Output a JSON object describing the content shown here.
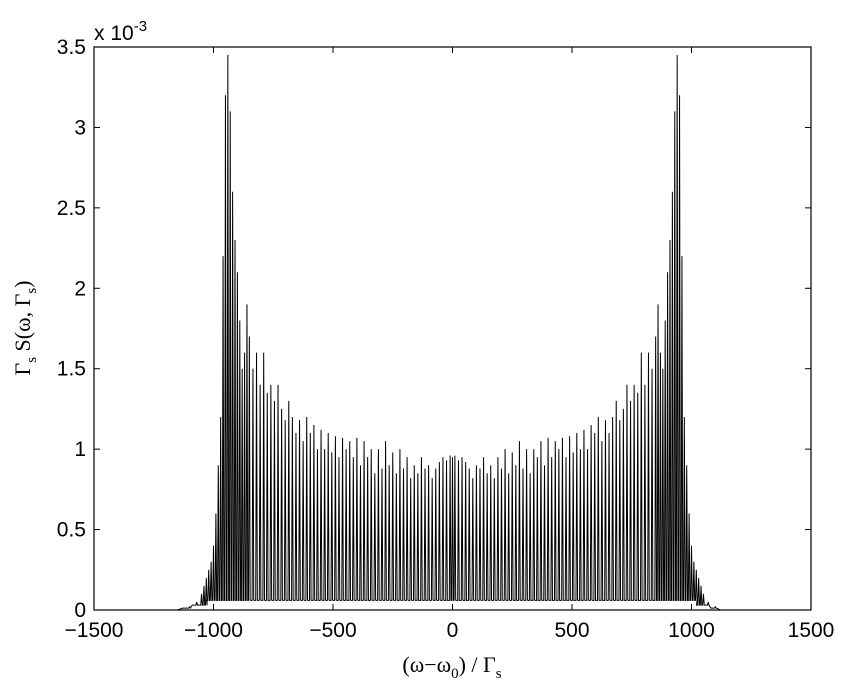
{
  "chart_data": {
    "type": "line",
    "title": "",
    "xlabel": "(ω−ω0) / Γs",
    "ylabel": "Γs S(ω, Γs)",
    "xlabel_parts": {
      "main": "(ω−ω",
      "sub0": "0",
      "tail": ") / Γ",
      "sub1": "s"
    },
    "ylabel_parts": {
      "g1": "Γ",
      "s1": "s",
      "mid": " S(ω, Γ",
      "s2": "s",
      "end": ")"
    },
    "exponent_label": {
      "base": "x 10",
      "exp": "-3"
    },
    "xlim": [
      -1500,
      1500
    ],
    "ylim": [
      0,
      0.0035
    ],
    "xticks": [
      -1500,
      -1000,
      -500,
      0,
      500,
      1000,
      1500
    ],
    "xtick_labels": [
      "−1500",
      "−1000",
      "−500",
      "0",
      "500",
      "1000",
      "1500"
    ],
    "yticks": [
      0,
      0.0005,
      0.001,
      0.0015,
      0.002,
      0.0025,
      0.003,
      0.0035
    ],
    "ytick_labels": [
      "0",
      "0.5",
      "1",
      "1.5",
      "2",
      "2.5",
      "3",
      "3.5"
    ],
    "grid": false,
    "series": [
      {
        "x": [
          -1150,
          -1100,
          -1070,
          -1050,
          -1040,
          -1030,
          -1020,
          -1010,
          -1000,
          -990,
          -980,
          -970,
          -960,
          -950,
          -940,
          -930,
          -920,
          -910,
          -900,
          -890,
          -880,
          -870,
          -860,
          -850,
          -835,
          -820,
          -805,
          -790,
          -775,
          -760,
          -745,
          -730,
          -715,
          -700,
          -685,
          -670,
          -655,
          -640,
          -625,
          -610,
          -595,
          -580,
          -565,
          -550,
          -535,
          -520,
          -505,
          -490,
          -475,
          -460,
          -445,
          -430,
          -415,
          -400,
          -385,
          -370,
          -355,
          -340,
          -325,
          -310,
          -295,
          -280,
          -265,
          -250,
          -235,
          -220,
          -205,
          -190,
          -175,
          -160,
          -145,
          -130,
          -115,
          -100,
          -85,
          -70,
          -55,
          -40,
          -25,
          -10,
          0,
          10,
          25,
          40,
          55,
          70,
          85,
          100,
          115,
          130,
          145,
          160,
          175,
          190,
          205,
          220,
          235,
          250,
          265,
          280,
          295,
          310,
          325,
          340,
          355,
          370,
          385,
          400,
          415,
          430,
          445,
          460,
          475,
          490,
          505,
          520,
          535,
          550,
          565,
          580,
          595,
          610,
          625,
          640,
          655,
          670,
          685,
          700,
          715,
          730,
          745,
          760,
          775,
          790,
          805,
          820,
          835,
          850,
          860,
          870,
          880,
          890,
          900,
          910,
          920,
          930,
          940,
          950,
          960,
          970,
          980,
          990,
          1000,
          1010,
          1020,
          1030,
          1040,
          1050,
          1070,
          1100,
          1150
        ],
        "y": [
          0.0,
          2e-05,
          5e-05,
          0.0001,
          0.00015,
          0.0002,
          0.00025,
          0.0003,
          0.0004,
          0.0006,
          0.0009,
          0.0012,
          0.0022,
          0.0032,
          0.00345,
          0.0031,
          0.0026,
          0.0023,
          0.0021,
          0.0018,
          0.0015,
          0.0016,
          0.0019,
          0.0017,
          0.0015,
          0.0016,
          0.0014,
          0.0016,
          0.00135,
          0.0014,
          0.0013,
          0.0014,
          0.00125,
          0.00118,
          0.0013,
          0.0012,
          0.0011,
          0.00118,
          0.00105,
          0.0012,
          0.0011,
          0.00115,
          0.001,
          0.00112,
          0.001,
          0.0011,
          0.00098,
          0.00108,
          0.00095,
          0.00107,
          0.001,
          0.00105,
          0.00095,
          0.00107,
          0.0009,
          0.00105,
          0.00095,
          0.001,
          0.00085,
          0.001,
          0.00088,
          0.00105,
          0.0009,
          0.00098,
          0.00085,
          0.001,
          0.00088,
          0.00095,
          0.00082,
          0.0009,
          0.00085,
          0.00095,
          0.00088,
          0.0009,
          0.00082,
          0.00088,
          0.00092,
          0.00095,
          0.00093,
          0.00096,
          0.00095,
          0.00096,
          0.00093,
          0.00095,
          0.00092,
          0.00088,
          0.00082,
          0.0009,
          0.00088,
          0.00095,
          0.00085,
          0.0009,
          0.00082,
          0.00095,
          0.00088,
          0.001,
          0.00085,
          0.00098,
          0.0009,
          0.00105,
          0.00088,
          0.001,
          0.00085,
          0.001,
          0.00095,
          0.00105,
          0.0009,
          0.00107,
          0.00095,
          0.00105,
          0.001,
          0.00107,
          0.00095,
          0.00108,
          0.00098,
          0.0011,
          0.001,
          0.00112,
          0.001,
          0.00115,
          0.0011,
          0.0012,
          0.00105,
          0.00118,
          0.0011,
          0.0012,
          0.0013,
          0.00118,
          0.00125,
          0.0014,
          0.0013,
          0.0014,
          0.00135,
          0.0016,
          0.0014,
          0.0016,
          0.0015,
          0.0017,
          0.0019,
          0.0016,
          0.0015,
          0.0018,
          0.0021,
          0.0023,
          0.0026,
          0.0031,
          0.00345,
          0.0032,
          0.0022,
          0.0012,
          0.0009,
          0.0006,
          0.0004,
          0.0003,
          0.00025,
          0.0002,
          0.00015,
          0.0001,
          5e-05,
          2e-05,
          0.0
        ]
      }
    ]
  }
}
